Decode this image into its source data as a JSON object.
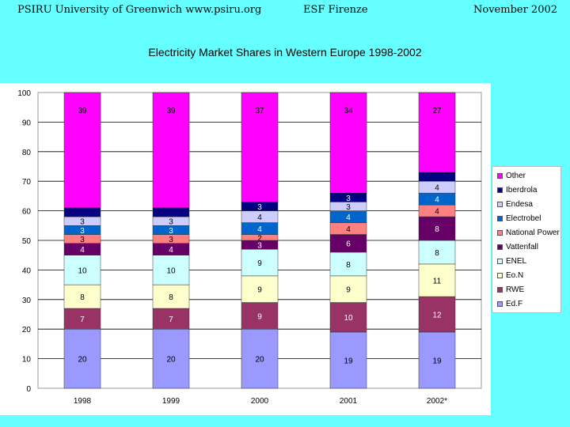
{
  "header": {
    "left": "PSIRU University of Greenwich   www.psiru.org",
    "center": "ESF Firenze",
    "right": "November  2002"
  },
  "chart_data": {
    "type": "bar",
    "stacked": true,
    "title": "Electricity Market Shares in Western Europe 1998-2002",
    "categories": [
      "1998",
      "1999",
      "2000",
      "2001",
      "2002*"
    ],
    "ylim": [
      0,
      100
    ],
    "yticks": [
      0,
      10,
      20,
      30,
      40,
      50,
      60,
      70,
      80,
      90,
      100
    ],
    "grid": true,
    "legend": "right",
    "series": [
      {
        "name": "Ed.F",
        "color": "#9999ff",
        "values": [
          20,
          20,
          20,
          19,
          19
        ],
        "labels": [
          "20",
          "20",
          "20",
          "19",
          "19"
        ]
      },
      {
        "name": "RWE",
        "color": "#993366",
        "values": [
          7,
          7,
          9,
          10,
          12
        ],
        "labels": [
          "7",
          "7",
          "9",
          "10",
          "12"
        ]
      },
      {
        "name": "Eo.N",
        "color": "#ffffcc",
        "values": [
          8,
          8,
          9,
          9,
          11
        ],
        "labels": [
          "8",
          "8",
          "9",
          "9",
          "11"
        ]
      },
      {
        "name": "ENEL",
        "color": "#ccffff",
        "values": [
          10,
          10,
          9,
          8,
          8
        ],
        "labels": [
          "10",
          "10",
          "9",
          "8",
          "8"
        ]
      },
      {
        "name": "Vattenfall",
        "color": "#660066",
        "values": [
          4,
          4,
          3,
          6,
          8
        ],
        "labels": [
          "4",
          "4",
          "3",
          "6",
          "8"
        ]
      },
      {
        "name": "National Power",
        "color": "#ff8080",
        "values": [
          3,
          3,
          2,
          4,
          4
        ],
        "labels": [
          "3",
          "3",
          "2",
          "4",
          "4"
        ]
      },
      {
        "name": "Electrobel",
        "color": "#0066cc",
        "values": [
          3,
          3,
          4,
          4,
          4
        ],
        "labels": [
          "3",
          "3",
          "4",
          "4",
          "4"
        ]
      },
      {
        "name": "Endesa",
        "color": "#ccccff",
        "values": [
          3,
          3,
          4,
          3,
          4
        ],
        "labels": [
          "3",
          "3",
          "4",
          "3",
          "4"
        ]
      },
      {
        "name": "Iberdrola",
        "color": "#000080",
        "values": [
          3,
          3,
          3,
          3,
          3
        ],
        "labels": [
          "",
          "",
          "3",
          "3",
          ""
        ]
      },
      {
        "name": "Other",
        "color": "#ff00ff",
        "values": [
          39,
          39,
          37,
          34,
          27
        ],
        "labels": [
          "39",
          "39",
          "37",
          "34",
          "27"
        ]
      }
    ]
  }
}
